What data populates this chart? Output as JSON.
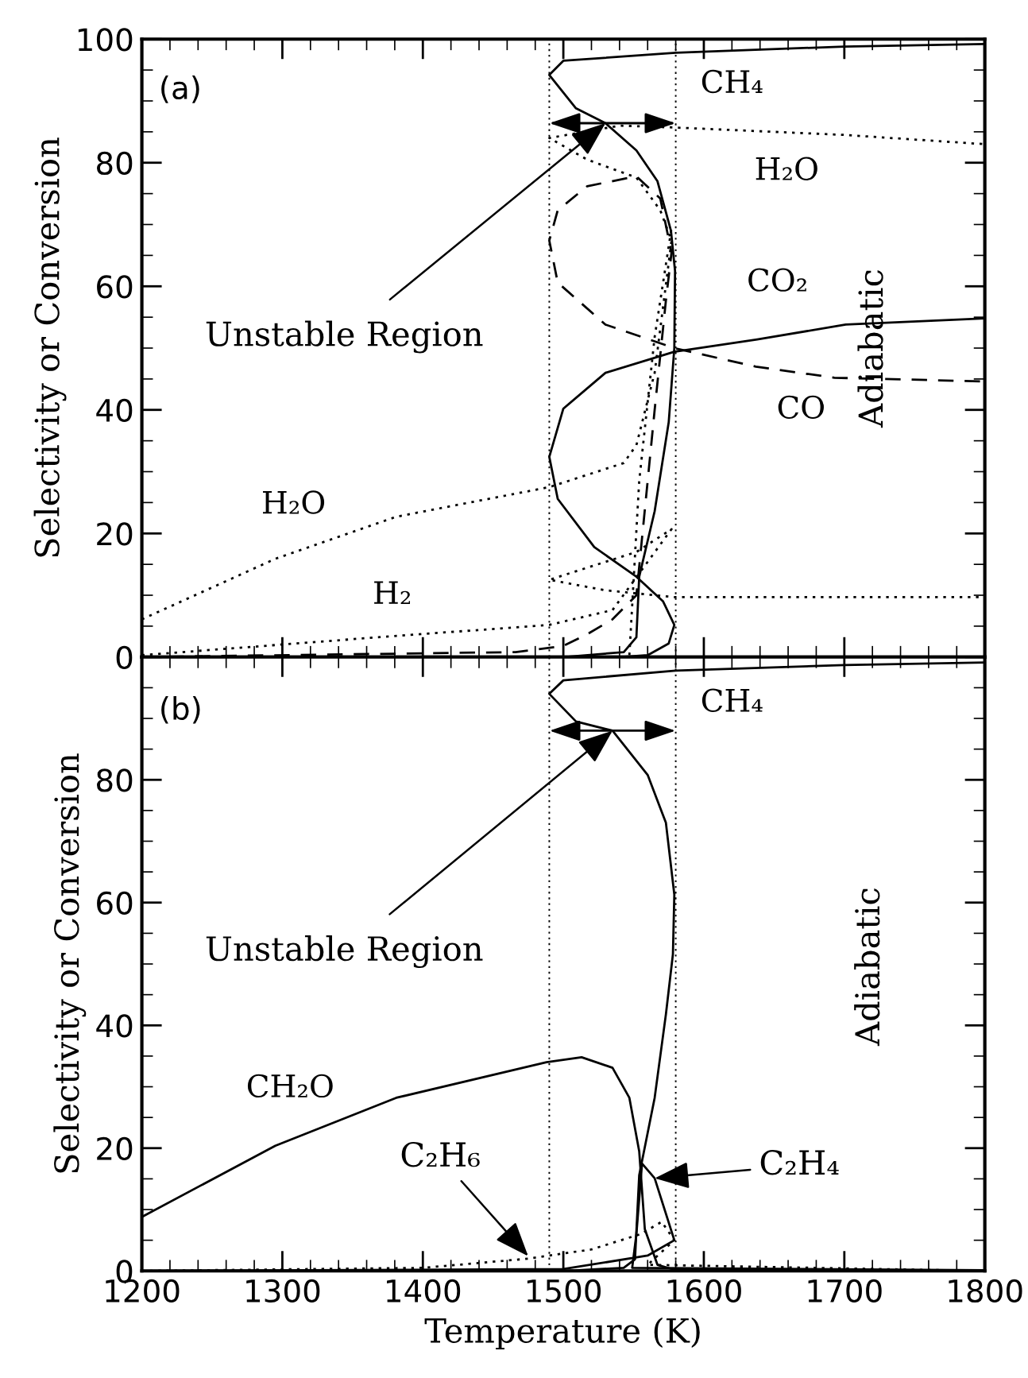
{
  "chart_data": [
    {
      "type": "line",
      "ylabel": "Selectivity or Conversion",
      "xlim": [
        1200,
        1800
      ],
      "ylim": [
        0,
        100
      ],
      "xticks": [
        1200,
        1300,
        1400,
        1500,
        1600,
        1700,
        1800
      ],
      "yticks": [
        0,
        20,
        40,
        60,
        80,
        100
      ],
      "tick_labels": "y",
      "grid": false,
      "marker": "none",
      "ref_lines": [
        {
          "axis": "x",
          "value": 1490,
          "line_style": "dotted"
        },
        {
          "axis": "x",
          "value": 1580,
          "line_style": "dotted"
        }
      ],
      "annotations": [
        "(a)",
        {
          "text": "Unstable Region",
          "x": 1530,
          "y": 86.4
        },
        "Adiabatic"
      ],
      "series": [
        {
          "name": "CH₄",
          "color": "#000000",
          "line_style": "solid",
          "x": [
            1200,
            1400,
            1500,
            1543,
            1552,
            1554,
            1565,
            1575,
            1579,
            1579.5,
            1576.6,
            1567,
            1552,
            1530,
            1509,
            1490,
            1500,
            1580,
            1700,
            1800
          ],
          "values": [
            0,
            0,
            0,
            0.8,
            3.2,
            13,
            23.6,
            38,
            50,
            62.5,
            69,
            77,
            82,
            86.4,
            88.8,
            94.2,
            96.5,
            97.8,
            98.8,
            99.2
          ]
        },
        {
          "name": "CO₂",
          "color": "#000000",
          "line_style": "solid",
          "x": [
            1540,
            1560,
            1575,
            1579,
            1571,
            1552,
            1522,
            1496,
            1490,
            1500,
            1530,
            1579,
            1638,
            1701,
            1800
          ],
          "values": [
            0,
            0.3,
            2.2,
            5.2,
            9,
            13,
            17.8,
            25.6,
            32.4,
            40.2,
            46,
            49.4,
            51.4,
            53.8,
            54.8
          ]
        },
        {
          "name": "CO",
          "color": "#000000",
          "line_style": "dashed",
          "x": [
            1200,
            1466,
            1500,
            1517,
            1535,
            1552,
            1565,
            1573,
            1577,
            1569,
            1552,
            1517,
            1496,
            1490,
            1496,
            1530,
            1579,
            1637,
            1693,
            1800
          ],
          "values": [
            0,
            0.8,
            1.8,
            3.7,
            6.1,
            10,
            40,
            57.7,
            65.5,
            74.2,
            77.8,
            76.2,
            72.3,
            67.4,
            60.6,
            53.8,
            50,
            47,
            45.2,
            44.6
          ]
        },
        {
          "name": "H₂O",
          "color": "#000000",
          "line_style": "dotted",
          "x": [
            1200,
            1295,
            1381,
            1490,
            1543,
            1552,
            1565,
            1577,
            1569,
            1552,
            1517,
            1490,
            1540,
            1579,
            1700,
            1800
          ],
          "values": [
            6.1,
            15.9,
            22.7,
            27.5,
            31.4,
            34.3,
            46,
            67.4,
            72.3,
            77.6,
            80.5,
            84,
            86,
            85.7,
            84.5,
            83
          ]
        },
        {
          "name": "H₂",
          "color": "#000000",
          "line_style": "dotted",
          "x": [
            1200,
            1368,
            1490,
            1535,
            1577,
            1552,
            1490,
            1530,
            1579,
            1800
          ],
          "values": [
            0.3,
            3.2,
            5.2,
            7.6,
            20.7,
            17,
            12.5,
            10.8,
            9.7,
            9.7
          ]
        },
        {
          "color": "#000000",
          "line_style": "dotted",
          "x": [
            1547,
            1554,
            1565,
            1577
          ],
          "values": [
            0.3,
            28.5,
            51.8,
            69.4
          ]
        }
      ]
    },
    {
      "type": "line",
      "xlabel": "Temperature (K)",
      "ylabel": "Selectivity or Conversion",
      "xlim": [
        1200,
        1800
      ],
      "ylim": [
        0,
        100
      ],
      "xticks": [
        1200,
        1300,
        1400,
        1500,
        1600,
        1700,
        1800
      ],
      "yticks": [
        0,
        20,
        40,
        60,
        80,
        {
          "value": 100,
          "label": null
        }
      ],
      "grid": false,
      "marker": "none",
      "ref_lines": [
        {
          "axis": "x",
          "value": 1490,
          "line_style": "dotted"
        },
        {
          "axis": "x",
          "value": 1580,
          "line_style": "dotted"
        }
      ],
      "annotations": [
        "(b)",
        {
          "text": "Unstable Region",
          "x": 1535,
          "y": 88
        },
        "Adiabatic",
        {
          "text": "C₂H₆",
          "x": 1475,
          "y": 2.4
        }
      ],
      "series": [
        {
          "name": "CH₄",
          "color": "#000000",
          "line_style": "solid",
          "x": [
            1200,
            1400,
            1500,
            1543,
            1551,
            1554,
            1565,
            1573,
            1578,
            1579,
            1573,
            1560,
            1535,
            1509,
            1490,
            1500,
            1580,
            1700,
            1800
          ],
          "values": [
            0,
            0,
            0,
            0.5,
            1.9,
            15.6,
            28.2,
            41.8,
            51.6,
            61.3,
            73,
            80.8,
            88,
            89.5,
            94,
            96.2,
            97.8,
            98.7,
            99.1
          ]
        },
        {
          "name": "CH₂O",
          "color": "#000000",
          "line_style": "solid",
          "x": [
            1200,
            1295,
            1381,
            1488,
            1513,
            1535,
            1547,
            1554,
            1558,
            1567,
            1579,
            1800
          ],
          "values": [
            8.8,
            20.4,
            28.2,
            34,
            34.8,
            33.1,
            28.2,
            19.5,
            6.8,
            1,
            0.2,
            0
          ]
        },
        {
          "name": "C₂H₄",
          "color": "#000000",
          "line_style": "solid",
          "x": [
            1200,
            1500,
            1560,
            1579,
            1565,
            1556,
            1552,
            1549,
            1800
          ],
          "values": [
            0,
            0.3,
            2.5,
            5,
            15.1,
            17.5,
            6,
            0.5,
            0.1
          ]
        },
        {
          "color": "#000000",
          "line_style": "dotted",
          "x": [
            1200,
            1400,
            1475,
            1520,
            1555,
            1570,
            1579,
            1560,
            1800
          ],
          "values": [
            0,
            0.5,
            2,
            3.5,
            6,
            8,
            5,
            1,
            0
          ]
        }
      ]
    }
  ]
}
